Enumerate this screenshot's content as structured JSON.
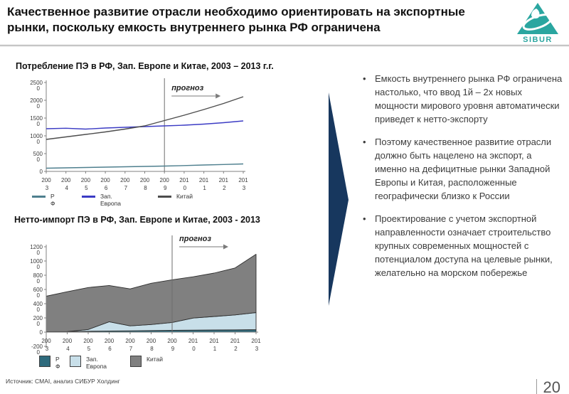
{
  "header": {
    "title": "Качественное развитие отрасли необходимо ориентировать на экспортные рынки, поскольку емкость внутреннего рынка РФ ограничена",
    "logo_text": "SIBUR"
  },
  "chart_data": [
    {
      "type": "line",
      "title": "Потребление ПЭ в РФ, Зап. Европе и Китае, 2003 – 2013 г.г.",
      "forecast_label": "прогноз",
      "forecast_x": 2009,
      "x": [
        2003,
        2004,
        2005,
        2006,
        2007,
        2008,
        2009,
        2010,
        2011,
        2012,
        2013
      ],
      "ylim": [
        0,
        25000
      ],
      "ytick_step": 5000,
      "grid": false,
      "legend_position": "bottom",
      "series": [
        {
          "name": "РФ",
          "label_lines": [
            "Р",
            "Ф"
          ],
          "color": "#4e7f8e",
          "values": [
            900,
            1000,
            1100,
            1200,
            1300,
            1400,
            1500,
            1650,
            1800,
            1950,
            2100
          ]
        },
        {
          "name": "Зап. Европа",
          "label_lines": [
            "Зап.",
            "Европа"
          ],
          "color": "#3b3bc4",
          "values": [
            12000,
            12150,
            11900,
            12200,
            12400,
            12600,
            12800,
            13000,
            13300,
            13700,
            14200
          ]
        },
        {
          "name": "Китай",
          "label_lines": [
            "Китай"
          ],
          "color": "#4d4d4d",
          "values": [
            9000,
            9700,
            10400,
            11100,
            11900,
            12800,
            14300,
            15800,
            17400,
            19100,
            21000
          ]
        }
      ]
    },
    {
      "type": "area",
      "title": "Нетто-импорт ПЭ в РФ, Зап. Европе и Китае, 2003 - 2013",
      "forecast_label": "прогноз",
      "forecast_x": 2009,
      "x": [
        2003,
        2004,
        2005,
        2006,
        2007,
        2008,
        2009,
        2010,
        2011,
        2012,
        2013
      ],
      "ylim": [
        -2000,
        12000
      ],
      "ytick_step": 2000,
      "grid": false,
      "legend_position": "bottom",
      "stacked": true,
      "series": [
        {
          "name": "РФ",
          "label_lines": [
            "Р",
            "Ф"
          ],
          "color": "#2f6b7d",
          "values": [
            50,
            80,
            120,
            160,
            180,
            220,
            260,
            280,
            300,
            320,
            350
          ]
        },
        {
          "name": "Зап. Европа",
          "label_lines": [
            "Зап.",
            "Европа"
          ],
          "color": "#c8dfe9",
          "values": [
            0,
            0,
            250,
            1300,
            700,
            850,
            1100,
            1700,
            1900,
            2100,
            2400
          ]
        },
        {
          "name": "Китай",
          "label_lines": [
            "Китай"
          ],
          "color": "#808080",
          "values": [
            5000,
            5600,
            5900,
            5100,
            5200,
            5800,
            6000,
            5800,
            6100,
            6600,
            8200
          ]
        }
      ]
    }
  ],
  "bullets": [
    "Емкость внутреннего рынка РФ ограничена настолько, что ввод 1й – 2х новых мощности мирового уровня автоматически приведет к нетто-экспорту",
    "Поэтому качественное развитие отрасли должно быть нацелено на экспорт, а именно на дефицитные рынки Западной Европы и Китая, расположенные географически близко к России",
    "Проектирование с учетом экспортной направленности означает строительство крупных современных мощностей с потенциалом доступа на целевые рынки, желательно на морском побережье"
  ],
  "footer": {
    "source": "Источник:  CMAI, анализ СИБУР Холдинг",
    "page_number": "20"
  },
  "colors": {
    "arrow": "#17375e",
    "logo": "#2aa6a0"
  }
}
